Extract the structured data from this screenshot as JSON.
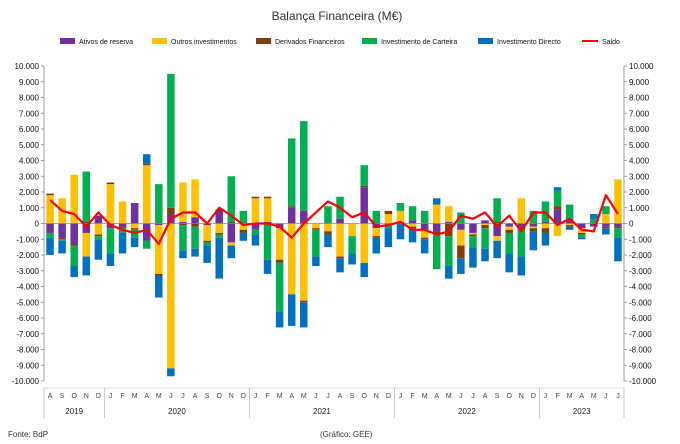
{
  "chart_data": {
    "type": "bar",
    "stacked": true,
    "title": "Balança Financeira (M€)",
    "source": "Fonte: BdP",
    "credit": "(Gráfico: GEE)",
    "ylim": [
      -10000,
      10000
    ],
    "y_ticks": [
      "10.000",
      "9.000",
      "8.000",
      "7.000",
      "6.000",
      "5.000",
      "4.000",
      "3.000",
      "2.000",
      "1.000",
      "0",
      "-1.000",
      "-2.000",
      "-3.000",
      "-4.000",
      "-5.000",
      "-6.000",
      "-7.000",
      "-8.000",
      "-9.000",
      "-10.000"
    ],
    "grid": false,
    "legend_position": "top",
    "categories": [
      "A",
      "S",
      "O",
      "N",
      "D",
      "J",
      "F",
      "M",
      "A",
      "M",
      "J",
      "J",
      "A",
      "S",
      "O",
      "N",
      "D",
      "J",
      "F",
      "M",
      "A",
      "M",
      "J",
      "J",
      "A",
      "S",
      "O",
      "N",
      "D",
      "J",
      "F",
      "M",
      "A",
      "M",
      "J",
      "J",
      "A",
      "S",
      "O",
      "N",
      "D",
      "J",
      "F",
      "M",
      "A",
      "M",
      "J",
      "J"
    ],
    "years": [
      {
        "label": "2019",
        "start": 0,
        "end": 4
      },
      {
        "label": "2020",
        "start": 5,
        "end": 16
      },
      {
        "label": "2021",
        "start": 17,
        "end": 28
      },
      {
        "label": "2022",
        "start": 29,
        "end": 40
      },
      {
        "label": "2023",
        "start": 41,
        "end": 47
      }
    ],
    "series": [
      {
        "name": "Ativos de reserva",
        "color": "#7030a0",
        "values": [
          -600,
          -900,
          -1300,
          -600,
          500,
          -300,
          -200,
          1300,
          -1100,
          -100,
          600,
          100,
          400,
          -100,
          900,
          -1200,
          0,
          -400,
          100,
          -300,
          1000,
          800,
          0,
          0,
          300,
          0,
          2300,
          -300,
          -100,
          100,
          200,
          -400,
          -500,
          100,
          -400,
          -600,
          200,
          -800,
          -200,
          -200,
          -200,
          100,
          900,
          300,
          -300,
          -200,
          -200,
          -200
        ]
      },
      {
        "name": "Outros investimentos",
        "color": "#ffc000",
        "values": [
          1800,
          1600,
          3100,
          -1500,
          -700,
          2500,
          1400,
          -300,
          3700,
          -3100,
          -9200,
          2500,
          2400,
          -1000,
          -600,
          -200,
          -400,
          1600,
          1500,
          -2000,
          -4500,
          -4900,
          -300,
          -500,
          -2100,
          -800,
          -2500,
          -500,
          600,
          700,
          -200,
          -500,
          1200,
          1000,
          -1000,
          -100,
          -100,
          -300,
          -200,
          1600,
          -100,
          -300,
          -800,
          -100,
          -300,
          0,
          600,
          2800
        ]
      },
      {
        "name": "Derivados Financeiros",
        "color": "#843c0c",
        "values": [
          100,
          -100,
          -100,
          100,
          -100,
          100,
          -100,
          -100,
          100,
          -100,
          400,
          -100,
          -200,
          -100,
          -100,
          100,
          -200,
          100,
          100,
          -200,
          100,
          -100,
          -100,
          -200,
          -100,
          0,
          100,
          -100,
          200,
          0,
          -100,
          -100,
          -200,
          -800,
          -800,
          -100,
          -200,
          100,
          -200,
          -200,
          -200,
          -300,
          200,
          -100,
          -100,
          0,
          -100,
          -100
        ]
      },
      {
        "name": "Investimento de Carteira",
        "color": "#00b050",
        "values": [
          -300,
          -100,
          -1300,
          3200,
          -200,
          -1600,
          -300,
          -500,
          -500,
          2500,
          8500,
          -1600,
          -1400,
          -200,
          -200,
          2900,
          800,
          -300,
          -2300,
          -3100,
          4300,
          5700,
          -1700,
          1100,
          1400,
          -1100,
          1300,
          800,
          -200,
          500,
          900,
          800,
          -2200,
          -1900,
          700,
          -700,
          -1300,
          1500,
          -1300,
          -1700,
          800,
          1300,
          1000,
          900,
          -200,
          300,
          500,
          -600
        ]
      },
      {
        "name": "Investimento Directo",
        "color": "#0070c0",
        "values": [
          -1100,
          -800,
          -700,
          -1200,
          -1300,
          -800,
          -1300,
          -600,
          600,
          -1400,
          -500,
          -500,
          -500,
          -1100,
          -2600,
          -800,
          -500,
          -700,
          -900,
          -1000,
          -2000,
          -1600,
          -600,
          -800,
          -900,
          -700,
          -900,
          -1000,
          -1200,
          -1000,
          -900,
          -900,
          400,
          -800,
          -1000,
          -1300,
          -800,
          -1100,
          -1200,
          -1200,
          -1200,
          -800,
          200,
          -200,
          -100,
          300,
          -400,
          -1500
        ]
      }
    ],
    "line": {
      "name": "Saldo",
      "color": "#ff0000",
      "values": [
        1500,
        800,
        600,
        -200,
        700,
        -100,
        -400,
        -600,
        -400,
        -1300,
        300,
        700,
        700,
        0,
        1000,
        500,
        -100,
        0,
        0,
        -200,
        -900,
        0,
        700,
        1400,
        1000,
        400,
        700,
        -200,
        -100,
        100,
        -400,
        -400,
        -700,
        -500,
        500,
        300,
        700,
        -200,
        500,
        -500,
        700,
        700,
        -100,
        300,
        -400,
        -500,
        1800,
        600
      ]
    }
  }
}
